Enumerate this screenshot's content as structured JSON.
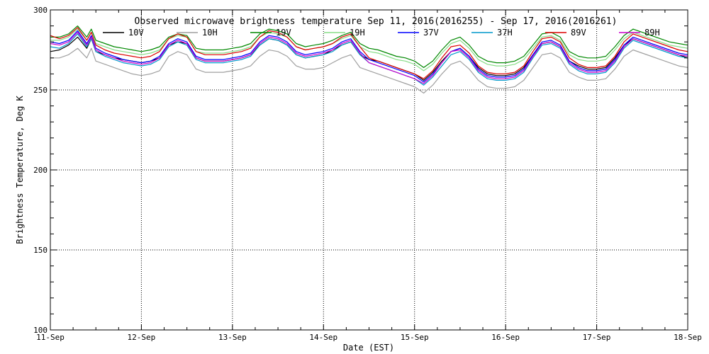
{
  "chart_data": {
    "type": "line",
    "title": "Observed microwave brightness temperature Sep 11, 2016(2016255) - Sep 17, 2016(2016261)",
    "xlabel": "Date (EST)",
    "ylabel": "Brightness Temperature, Deg K",
    "xlim": [
      0,
      7
    ],
    "ylim": [
      100,
      300
    ],
    "x_tick_labels": [
      "11-Sep",
      "12-Sep",
      "13-Sep",
      "14-Sep",
      "15-Sep",
      "16-Sep",
      "17-Sep",
      "18-Sep"
    ],
    "y_ticks": [
      100,
      150,
      200,
      250,
      300
    ],
    "grid": true,
    "legend_placement": "top",
    "x": [
      0.0,
      0.1,
      0.2,
      0.3,
      0.4,
      0.45,
      0.5,
      0.6,
      0.7,
      0.8,
      0.9,
      1.0,
      1.1,
      1.2,
      1.3,
      1.4,
      1.5,
      1.6,
      1.7,
      1.8,
      1.9,
      2.0,
      2.1,
      2.2,
      2.3,
      2.4,
      2.5,
      2.6,
      2.7,
      2.8,
      2.9,
      3.0,
      3.1,
      3.2,
      3.3,
      3.4,
      3.5,
      3.6,
      3.7,
      3.8,
      3.9,
      4.0,
      4.1,
      4.2,
      4.3,
      4.4,
      4.5,
      4.6,
      4.7,
      4.8,
      4.9,
      5.0,
      5.1,
      5.2,
      5.3,
      5.4,
      5.5,
      5.6,
      5.7,
      5.8,
      5.9,
      6.0,
      6.1,
      6.2,
      6.3,
      6.4,
      6.5,
      6.6,
      6.7,
      6.8,
      6.9,
      7.0
    ],
    "series": [
      {
        "name": "10V",
        "color": "#000000",
        "values": [
          274,
          275,
          278,
          283,
          276,
          282,
          274,
          272,
          270,
          269,
          268,
          267,
          268,
          270,
          278,
          280,
          279,
          270,
          268,
          268,
          268,
          269,
          270,
          272,
          278,
          282,
          281,
          278,
          272,
          270,
          271,
          272,
          275,
          278,
          280,
          272,
          269,
          268,
          266,
          264,
          262,
          260,
          256,
          261,
          268,
          274,
          276,
          271,
          264,
          260,
          259,
          259,
          260,
          264,
          272,
          279,
          280,
          277,
          268,
          265,
          263,
          263,
          264,
          270,
          278,
          282,
          280,
          278,
          276,
          274,
          272,
          270
        ]
      },
      {
        "name": "10H",
        "color": "#a0a0a0",
        "values": [
          270,
          270,
          272,
          276,
          270,
          276,
          268,
          266,
          264,
          262,
          260,
          259,
          260,
          262,
          271,
          274,
          272,
          263,
          261,
          261,
          261,
          262,
          263,
          265,
          271,
          275,
          274,
          271,
          265,
          263,
          263,
          264,
          267,
          270,
          272,
          264,
          262,
          260,
          258,
          256,
          254,
          252,
          248,
          253,
          260,
          266,
          268,
          263,
          256,
          252,
          251,
          251,
          252,
          256,
          264,
          272,
          273,
          270,
          261,
          258,
          256,
          256,
          257,
          263,
          271,
          275,
          273,
          271,
          269,
          267,
          265,
          264
        ]
      },
      {
        "name": "19V",
        "color": "#008800",
        "values": [
          283,
          283,
          285,
          290,
          283,
          288,
          281,
          279,
          277,
          276,
          275,
          274,
          275,
          277,
          283,
          285,
          284,
          276,
          275,
          275,
          275,
          276,
          277,
          279,
          285,
          288,
          287,
          285,
          279,
          277,
          278,
          279,
          281,
          284,
          286,
          279,
          276,
          275,
          273,
          271,
          270,
          268,
          264,
          268,
          275,
          281,
          283,
          278,
          271,
          268,
          267,
          267,
          268,
          271,
          278,
          285,
          286,
          283,
          274,
          271,
          270,
          270,
          271,
          277,
          284,
          288,
          286,
          284,
          282,
          280,
          279,
          278
        ]
      },
      {
        "name": "19H",
        "color": "#88dd88",
        "values": [
          281,
          281,
          283,
          288,
          281,
          286,
          279,
          277,
          275,
          274,
          273,
          272,
          273,
          275,
          282,
          284,
          283,
          274,
          273,
          273,
          273,
          274,
          275,
          277,
          283,
          286,
          285,
          283,
          277,
          275,
          276,
          277,
          279,
          282,
          284,
          277,
          274,
          273,
          271,
          269,
          268,
          266,
          262,
          266,
          273,
          279,
          281,
          276,
          269,
          266,
          265,
          265,
          266,
          269,
          276,
          283,
          284,
          281,
          272,
          269,
          268,
          268,
          269,
          275,
          282,
          286,
          284,
          282,
          280,
          278,
          277,
          276
        ]
      },
      {
        "name": "37V",
        "color": "#0000ff",
        "values": [
          280,
          279,
          281,
          287,
          279,
          284,
          276,
          273,
          271,
          269,
          268,
          267,
          268,
          271,
          279,
          282,
          280,
          271,
          269,
          269,
          269,
          270,
          271,
          273,
          280,
          284,
          283,
          280,
          274,
          272,
          273,
          274,
          276,
          280,
          282,
          274,
          269,
          267,
          265,
          263,
          261,
          259,
          255,
          260,
          267,
          274,
          276,
          271,
          263,
          259,
          258,
          258,
          259,
          263,
          272,
          280,
          281,
          278,
          268,
          264,
          262,
          262,
          263,
          269,
          278,
          283,
          281,
          279,
          277,
          275,
          273,
          272
        ]
      },
      {
        "name": "37H",
        "color": "#0099cc",
        "values": [
          277,
          276,
          279,
          285,
          277,
          282,
          274,
          271,
          269,
          267,
          266,
          265,
          266,
          269,
          277,
          280,
          278,
          269,
          267,
          267,
          267,
          268,
          269,
          271,
          278,
          282,
          281,
          278,
          272,
          270,
          271,
          272,
          274,
          278,
          280,
          272,
          267,
          265,
          263,
          261,
          259,
          257,
          253,
          258,
          265,
          272,
          274,
          269,
          261,
          257,
          256,
          256,
          257,
          261,
          270,
          278,
          279,
          276,
          266,
          262,
          260,
          260,
          261,
          267,
          276,
          281,
          279,
          277,
          275,
          273,
          271,
          270
        ]
      },
      {
        "name": "89V",
        "color": "#dd0000",
        "values": [
          284,
          282,
          284,
          289,
          281,
          286,
          278,
          275,
          273,
          272,
          271,
          270,
          271,
          274,
          282,
          285,
          283,
          274,
          272,
          272,
          272,
          273,
          274,
          276,
          283,
          287,
          286,
          283,
          277,
          275,
          276,
          277,
          279,
          283,
          285,
          277,
          270,
          268,
          266,
          264,
          262,
          260,
          257,
          262,
          270,
          277,
          278,
          273,
          265,
          261,
          260,
          260,
          261,
          265,
          274,
          282,
          283,
          280,
          270,
          266,
          264,
          264,
          265,
          271,
          280,
          285,
          283,
          281,
          279,
          277,
          275,
          274
        ]
      },
      {
        "name": "89H",
        "color": "#cc00cc",
        "values": [
          279,
          278,
          280,
          286,
          278,
          283,
          275,
          272,
          270,
          268,
          267,
          266,
          267,
          270,
          278,
          281,
          279,
          270,
          268,
          268,
          268,
          269,
          270,
          272,
          279,
          283,
          282,
          279,
          273,
          271,
          272,
          273,
          275,
          279,
          281,
          273,
          267,
          265,
          263,
          261,
          259,
          257,
          254,
          259,
          267,
          274,
          275,
          270,
          262,
          258,
          257,
          257,
          258,
          262,
          271,
          279,
          280,
          277,
          267,
          263,
          261,
          261,
          262,
          268,
          277,
          282,
          280,
          278,
          276,
          274,
          272,
          271
        ]
      }
    ]
  }
}
